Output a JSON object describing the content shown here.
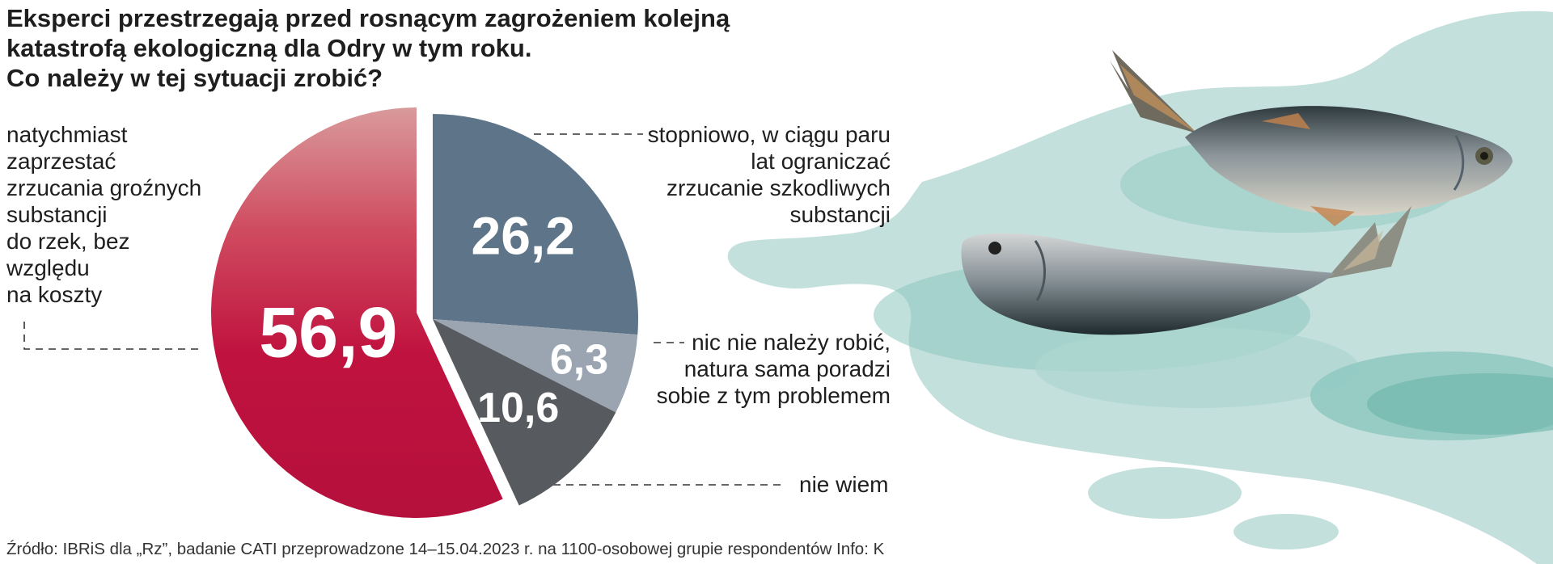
{
  "title": {
    "lines": [
      "Eksperci przestrzegają przed rosnącym zagrożeniem kolejną",
      "katastrofą ekologiczną dla Odry w tym roku.",
      "Co należy w tej sytuacji zrobić?"
    ]
  },
  "labels": {
    "stop_now": [
      "natychmiast",
      "zaprzestać",
      "zrzucania groźnych",
      "substancji",
      "do rzek, bez",
      "względu",
      "na koszty"
    ],
    "gradual": [
      "stopniowo, w ciągu paru",
      "lat ograniczać",
      "zrzucanie szkodliwych",
      "substancji"
    ],
    "nothing": [
      "nic nie należy robić,",
      "natura sama poradzi",
      "sobie z tym problemem"
    ],
    "dont_know": [
      "nie wiem"
    ]
  },
  "source": "Źródło: IBRiS dla „Rz”, badanie CATI przeprowadzone 14–15.04.2023 r. na 1100-osobowej grupie respondentów   Info: K",
  "colors": {
    "red": "#c0123f",
    "slate": "#5d7489",
    "light_slate": "#9aa5b1",
    "dark_gray": "#575a5e",
    "water": "#c3e0dc",
    "water_dark": "#8cc7bf"
  },
  "chart_data": {
    "type": "pie",
    "title": "",
    "slices": [
      {
        "label": "stopniowo, w ciągu paru lat ograniczać zrzucanie szkodliwych substancji",
        "value": 26.2,
        "display": "26,2",
        "color": "#5d7489"
      },
      {
        "label": "nic nie należy robić, natura sama poradzi sobie z tym problemem",
        "value": 6.3,
        "display": "6,3",
        "color": "#9aa5b1"
      },
      {
        "label": "nie wiem",
        "value": 10.6,
        "display": "10,6",
        "color": "#575a5e"
      },
      {
        "label": "natychmiast zaprzestać zrzucania groźnych substancji do rzek, bez względu na koszty",
        "value": 56.9,
        "display": "56,9",
        "color": "#c0123f"
      }
    ],
    "start": "12 o'clock",
    "direction": "clockwise",
    "exploded_slice": "56,9",
    "legend": "none"
  }
}
